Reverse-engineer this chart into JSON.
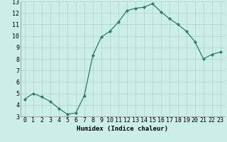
{
  "x": [
    0,
    1,
    2,
    3,
    4,
    5,
    6,
    7,
    8,
    9,
    10,
    11,
    12,
    13,
    14,
    15,
    16,
    17,
    18,
    19,
    20,
    21,
    22,
    23
  ],
  "y": [
    4.5,
    5.0,
    4.7,
    4.3,
    3.7,
    3.2,
    3.3,
    4.8,
    8.3,
    9.9,
    10.4,
    11.2,
    12.2,
    12.4,
    12.5,
    12.8,
    12.1,
    11.5,
    11.0,
    10.4,
    9.5,
    8.0,
    8.4,
    8.6
  ],
  "xlabel": "Humidex (Indice chaleur)",
  "ylim": [
    3,
    13
  ],
  "xlim_min": -0.5,
  "xlim_max": 23.5,
  "yticks": [
    3,
    4,
    5,
    6,
    7,
    8,
    9,
    10,
    11,
    12,
    13
  ],
  "xticks": [
    0,
    1,
    2,
    3,
    4,
    5,
    6,
    7,
    8,
    9,
    10,
    11,
    12,
    13,
    14,
    15,
    16,
    17,
    18,
    19,
    20,
    21,
    22,
    23
  ],
  "line_color": "#2d7a6b",
  "marker": "D",
  "marker_size": 2.0,
  "bg_color": "#cceee8",
  "grid_color": "#aad4ce",
  "axis_label_fontsize": 6.5,
  "tick_fontsize": 6.0,
  "linewidth": 0.9
}
